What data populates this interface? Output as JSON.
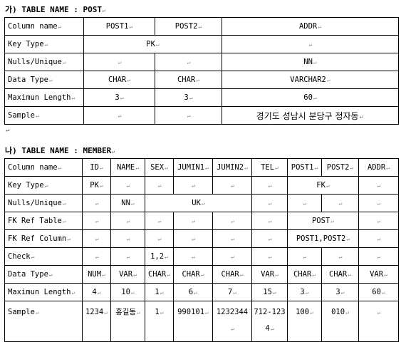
{
  "post": {
    "heading": "가) TABLE NAME : POST",
    "columns": [
      "Column name",
      "POST1",
      "POST2",
      "ADDR"
    ],
    "key_type": {
      "label": "Key Type",
      "pk": "PK",
      "addr": ""
    },
    "nulls": {
      "label": "Nulls/Unique",
      "post1": "",
      "post2": "",
      "addr": "NN"
    },
    "data_type": {
      "label": "Data Type",
      "post1": "CHAR",
      "post2": "CHAR",
      "addr": "VARCHAR2"
    },
    "max_length": {
      "label": "Maximun Length",
      "post1": "3",
      "post2": "3",
      "addr": "60"
    },
    "sample": {
      "label": "Sample",
      "post1": "",
      "post2": "",
      "addr": "경기도 성남시 분당구 정자동"
    }
  },
  "member": {
    "heading": "나) TABLE NAME : MEMBER",
    "columns": [
      "Column name",
      "ID",
      "NAME",
      "SEX",
      "JUMIN1",
      "JUMIN2",
      "TEL",
      "POST1",
      "POST2",
      "ADDR"
    ],
    "key_type": {
      "label": "Key Type",
      "id": "PK",
      "post_fk": "FK"
    },
    "nulls": {
      "label": "Nulls/Unique",
      "name": "NN",
      "jumin_uk": "UK"
    },
    "fk_ref_table": {
      "label": "FK Ref Table",
      "post": "POST"
    },
    "fk_ref_column": {
      "label": "FK Ref Column",
      "post": "POST1,POST2"
    },
    "check": {
      "label": "Check",
      "sex": "1,2"
    },
    "data_type": {
      "label": "Data Type",
      "values": [
        "NUM",
        "VAR",
        "CHAR",
        "CHAR",
        "CHAR",
        "VAR",
        "CHAR",
        "CHAR",
        "VAR"
      ]
    },
    "max_length": {
      "label": "Maximun Length",
      "values": [
        "4",
        "10",
        "1",
        "6",
        "7",
        "15",
        "3",
        "3",
        "60"
      ]
    },
    "sample": {
      "label": "Sample",
      "values": [
        "1234",
        "홍길동",
        "1",
        "990101",
        "1232344",
        "712-1234",
        "100",
        "010",
        ""
      ]
    }
  }
}
